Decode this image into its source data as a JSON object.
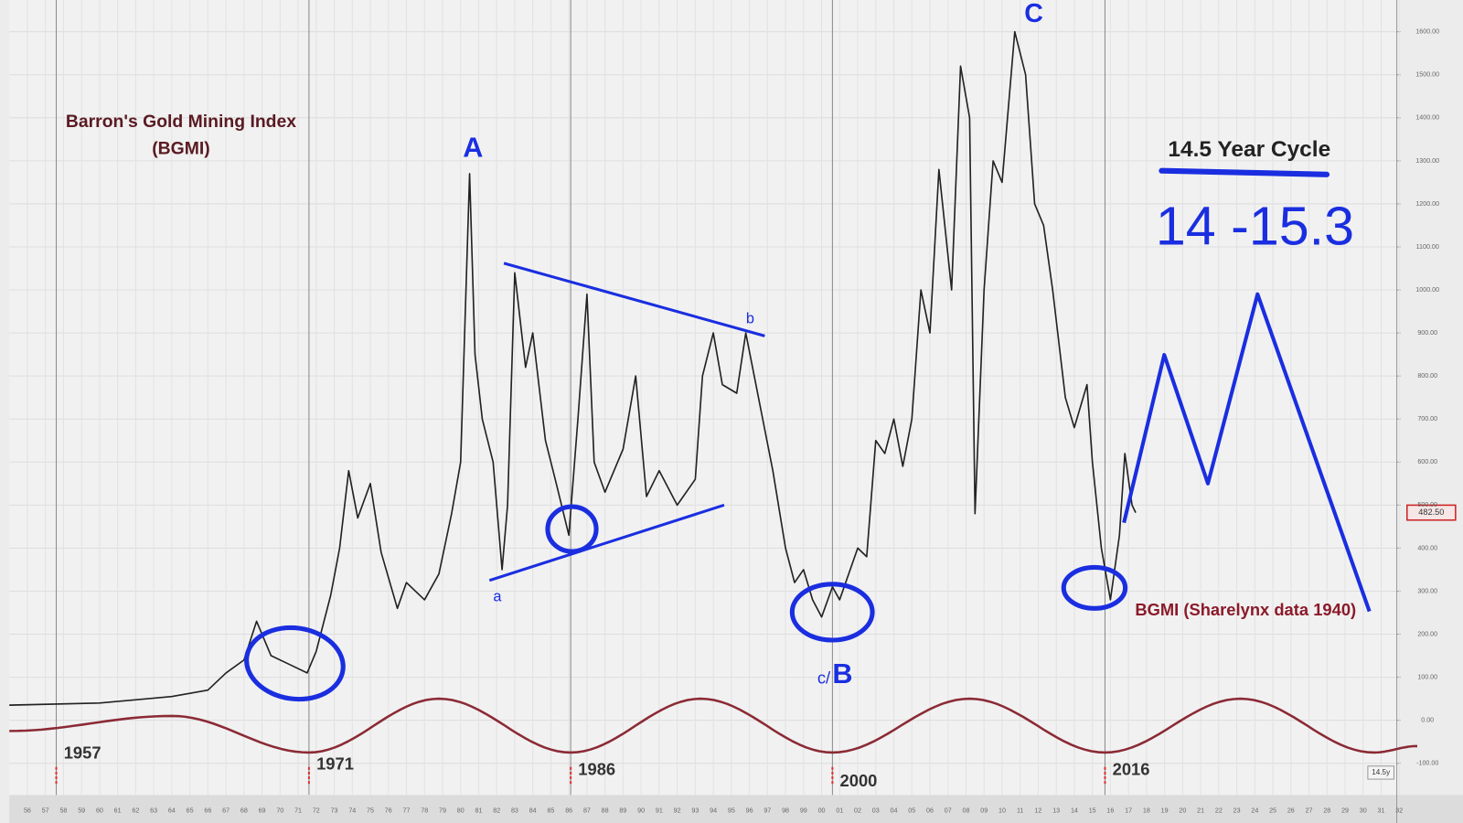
{
  "chart_data": {
    "type": "line",
    "title": "Barron's Gold Mining Index",
    "subtitle": "(BGMI)",
    "title_color": "#5a1a22",
    "xlim": [
      1955,
      2033
    ],
    "ylim": [
      -100,
      1600
    ],
    "yticks": [
      {
        "value": 1600,
        "label": "1600.00"
      },
      {
        "value": 1500,
        "label": "1500.00"
      },
      {
        "value": 1400,
        "label": "1400.00"
      },
      {
        "value": 1300,
        "label": "1300.00"
      },
      {
        "value": 1200,
        "label": "1200.00"
      },
      {
        "value": 1100,
        "label": "1100.00"
      },
      {
        "value": 1000,
        "label": "1000.00"
      },
      {
        "value": 900,
        "label": "900.00"
      },
      {
        "value": 800,
        "label": "800.00"
      },
      {
        "value": 700,
        "label": "700.00"
      },
      {
        "value": 600,
        "label": "600.00"
      },
      {
        "value": 500,
        "label": "500.00"
      },
      {
        "value": 400,
        "label": "400.00"
      },
      {
        "value": 300,
        "label": "300.00"
      },
      {
        "value": 200,
        "label": "200.00"
      },
      {
        "value": 100,
        "label": "100.00"
      },
      {
        "value": 0,
        "label": "0.00"
      },
      {
        "value": -100,
        "label": "-100.00"
      }
    ],
    "year_labels": [
      "56",
      "57",
      "58",
      "59",
      "60",
      "61",
      "62",
      "63",
      "64",
      "65",
      "66",
      "67",
      "68",
      "69",
      "70",
      "71",
      "72",
      "73",
      "74",
      "75",
      "76",
      "77",
      "78",
      "79",
      "80",
      "81",
      "82",
      "83",
      "84",
      "85",
      "86",
      "87",
      "88",
      "89",
      "90",
      "91",
      "92",
      "93",
      "94",
      "95",
      "96",
      "97",
      "98",
      "99",
      "00",
      "01",
      "02",
      "03",
      "04",
      "05",
      "06",
      "07",
      "08",
      "09",
      "10",
      "11",
      "12",
      "13",
      "14",
      "15",
      "16",
      "17",
      "18",
      "19",
      "20",
      "21",
      "22",
      "23",
      "24",
      "25",
      "26",
      "27",
      "28",
      "29",
      "30",
      "31",
      "32"
    ],
    "year_label_start": 1956,
    "grid": true,
    "series": [
      {
        "name": "BGMI (Sharelynx data 1940)",
        "color": "#222222",
        "label_color": "#8b1a2a",
        "x": [
          1955,
          1960,
          1964,
          1966,
          1967,
          1968,
          1968.7,
          1969.5,
          1970.5,
          1971.5,
          1972,
          1972.8,
          1973.3,
          1973.8,
          1974.3,
          1975,
          1975.6,
          1976.5,
          1977,
          1978,
          1978.8,
          1979.5,
          1980,
          1980.5,
          1980.8,
          1981.2,
          1981.8,
          1982.3,
          1982.6,
          1983,
          1983.6,
          1984,
          1984.7,
          1985.3,
          1986,
          1986.5,
          1987,
          1987.4,
          1988,
          1989,
          1989.7,
          1990.3,
          1991,
          1992,
          1993,
          1993.4,
          1994,
          1994.5,
          1995.3,
          1995.8,
          1996.5,
          1997.3,
          1998,
          1998.5,
          1999,
          1999.5,
          2000,
          2000.6,
          2001,
          2002,
          2002.5,
          2003,
          2003.5,
          2004,
          2004.5,
          2005,
          2005.5,
          2006,
          2006.5,
          2007.2,
          2007.7,
          2008.2,
          2008.5,
          2009,
          2009.5,
          2010,
          2010.7,
          2011.3,
          2011.8,
          2012.3,
          2012.8,
          2013.5,
          2014,
          2014.7,
          2015,
          2015.5,
          2016,
          2016.5,
          2016.8,
          2017.2,
          2017.4
        ],
        "values": [
          35,
          40,
          55,
          70,
          110,
          140,
          230,
          150,
          130,
          110,
          160,
          290,
          400,
          580,
          470,
          550,
          390,
          260,
          320,
          280,
          340,
          480,
          600,
          1270,
          850,
          700,
          600,
          350,
          500,
          1040,
          820,
          900,
          650,
          550,
          430,
          700,
          990,
          600,
          530,
          630,
          800,
          520,
          580,
          500,
          560,
          800,
          900,
          780,
          760,
          900,
          750,
          580,
          400,
          320,
          350,
          280,
          240,
          310,
          280,
          400,
          380,
          650,
          620,
          700,
          590,
          700,
          1000,
          900,
          1280,
          1000,
          1520,
          1400,
          480,
          1000,
          1300,
          1250,
          1600,
          1500,
          1200,
          1150,
          1000,
          750,
          680,
          780,
          600,
          400,
          280,
          430,
          620,
          500,
          482.5
        ]
      },
      {
        "color": "#8b2a35",
        "curve": "smooth",
        "x": [
          1955,
          1964,
          1971.6,
          1978.8,
          1986.1,
          1993.3,
          2000.6,
          2008.2,
          2015.7,
          2023.2,
          2030.6,
          2033
        ],
        "values": [
          -25,
          10,
          -75,
          50,
          -75,
          50,
          -75,
          50,
          -75,
          50,
          -75,
          -60
        ]
      },
      {
        "color": "#1a2ee0",
        "x": [
          2016.75,
          2018.98,
          2021.4,
          2024.15,
          2030.35
        ],
        "values": [
          459,
          849,
          550,
          990,
          253
        ]
      }
    ],
    "trendlines": [
      {
        "color": "#1a2ee0",
        "x": [
          1982.4,
          1996.85
        ],
        "values": [
          1062,
          893
        ]
      },
      {
        "color": "#1a2ee0",
        "x": [
          1981.6,
          1994.6
        ],
        "values": [
          325,
          500
        ]
      }
    ],
    "cycle_lows": {
      "x": [
        1957.6,
        1971.6,
        1986.1,
        2000.6,
        2015.7
      ],
      "labels": [
        "1957",
        "1971",
        "1986",
        "2000",
        "2016"
      ]
    },
    "last_value": {
      "value": 482.5,
      "label": "482.50"
    },
    "cycle_length_label": "14.5y",
    "annotations": [
      "A",
      "C",
      "c/",
      "B",
      "a",
      "b",
      "14.5 Year Cycle",
      "14 -15.3"
    ]
  }
}
